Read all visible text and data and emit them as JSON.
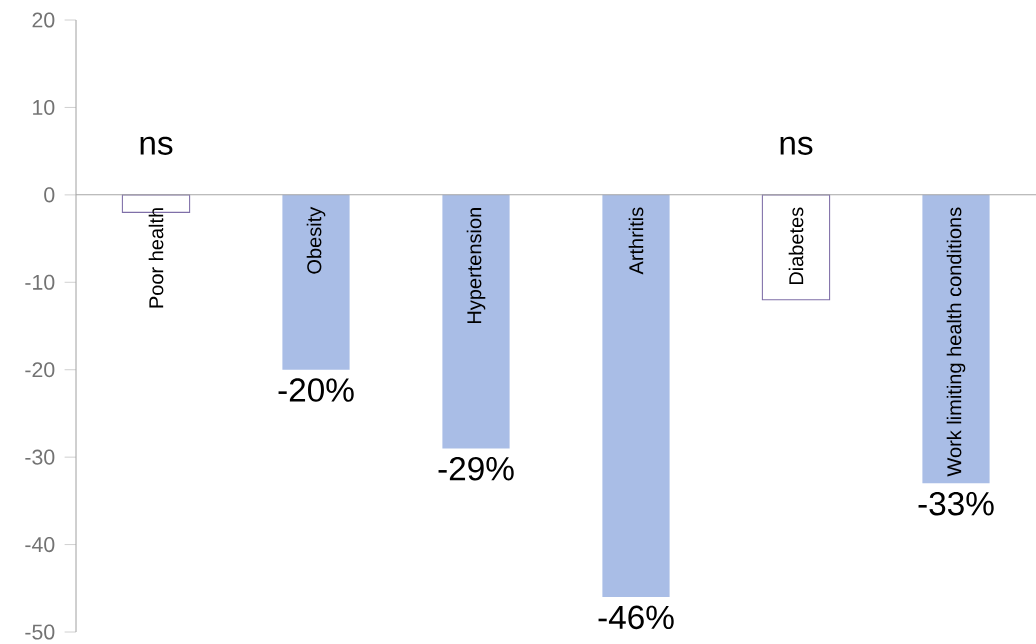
{
  "chart_data": {
    "type": "bar",
    "categories": [
      "Poor health",
      "Obesity",
      "Hypertension",
      "Arthritis",
      "Diabetes",
      "Work limiting health conditions"
    ],
    "values": [
      -2,
      -20,
      -29,
      -46,
      -12,
      -33
    ],
    "colors": [
      "#ffffff",
      "#a9bde6",
      "#a9bde6",
      "#a9bde6",
      "#ffffff",
      "#a9bde6"
    ],
    "value_labels": [
      null,
      "-20%",
      "-29%",
      "-46%",
      null,
      "-33%"
    ],
    "annotations": [
      "ns",
      "ns"
    ],
    "ylim": [
      -50,
      20
    ],
    "yticks": [
      -50,
      -40,
      -30,
      -20,
      -10,
      0,
      10,
      20
    ],
    "grid": false
  }
}
